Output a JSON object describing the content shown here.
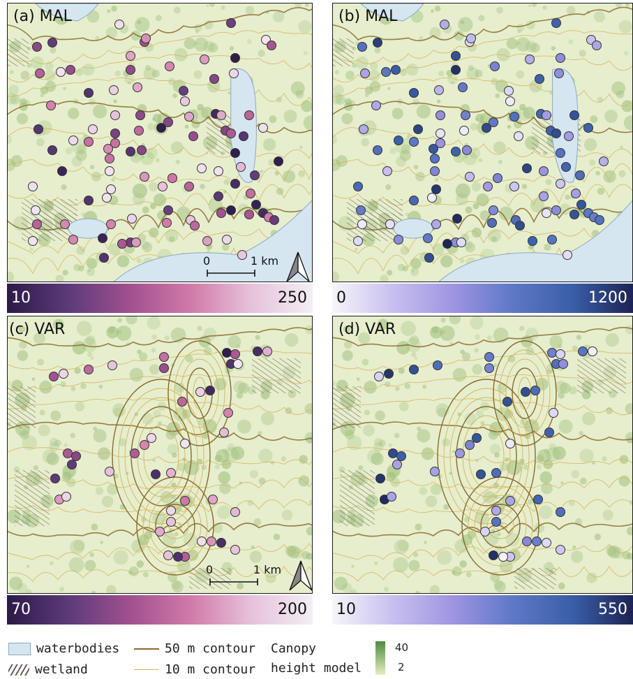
{
  "panels": {
    "a": {
      "label": "(a) MAL",
      "cmin": 10,
      "cmax": 250,
      "cbar_lo": "10",
      "cbar_hi": "250",
      "palette": "purple-pink-white"
    },
    "b": {
      "label": "(b) MAL",
      "cmin": 0,
      "cmax": 1200,
      "cbar_lo": "0",
      "cbar_hi": "1200",
      "palette": "white-blue-navy"
    },
    "c": {
      "label": "(c) VAR",
      "cmin": 70,
      "cmax": 200,
      "cbar_lo": "70",
      "cbar_hi": "200",
      "palette": "purple-pink-white"
    },
    "d": {
      "label": "(d) VAR",
      "cmin": 10,
      "cmax": 550,
      "cbar_lo": "10",
      "cbar_hi": "550",
      "palette": "white-blue-navy"
    }
  },
  "scalebar": {
    "zero": "0",
    "dist": "1 km"
  },
  "legend": {
    "waterbodies": "waterbodies",
    "wetland": "wetland",
    "contour50": "50 m contour",
    "contour10": "10 m contour",
    "chm_line1": "Canopy",
    "chm_line2": "height model",
    "chm_max": "40",
    "chm_min": "2"
  },
  "colors": {
    "panel_border": "#1a1a1a",
    "water": "#d5e6f1",
    "forest_light": "#e6eecd",
    "forest_dark": "#9fbf7c",
    "contour50": "#8a6a2a",
    "contour10": "#d6b45a"
  }
}
